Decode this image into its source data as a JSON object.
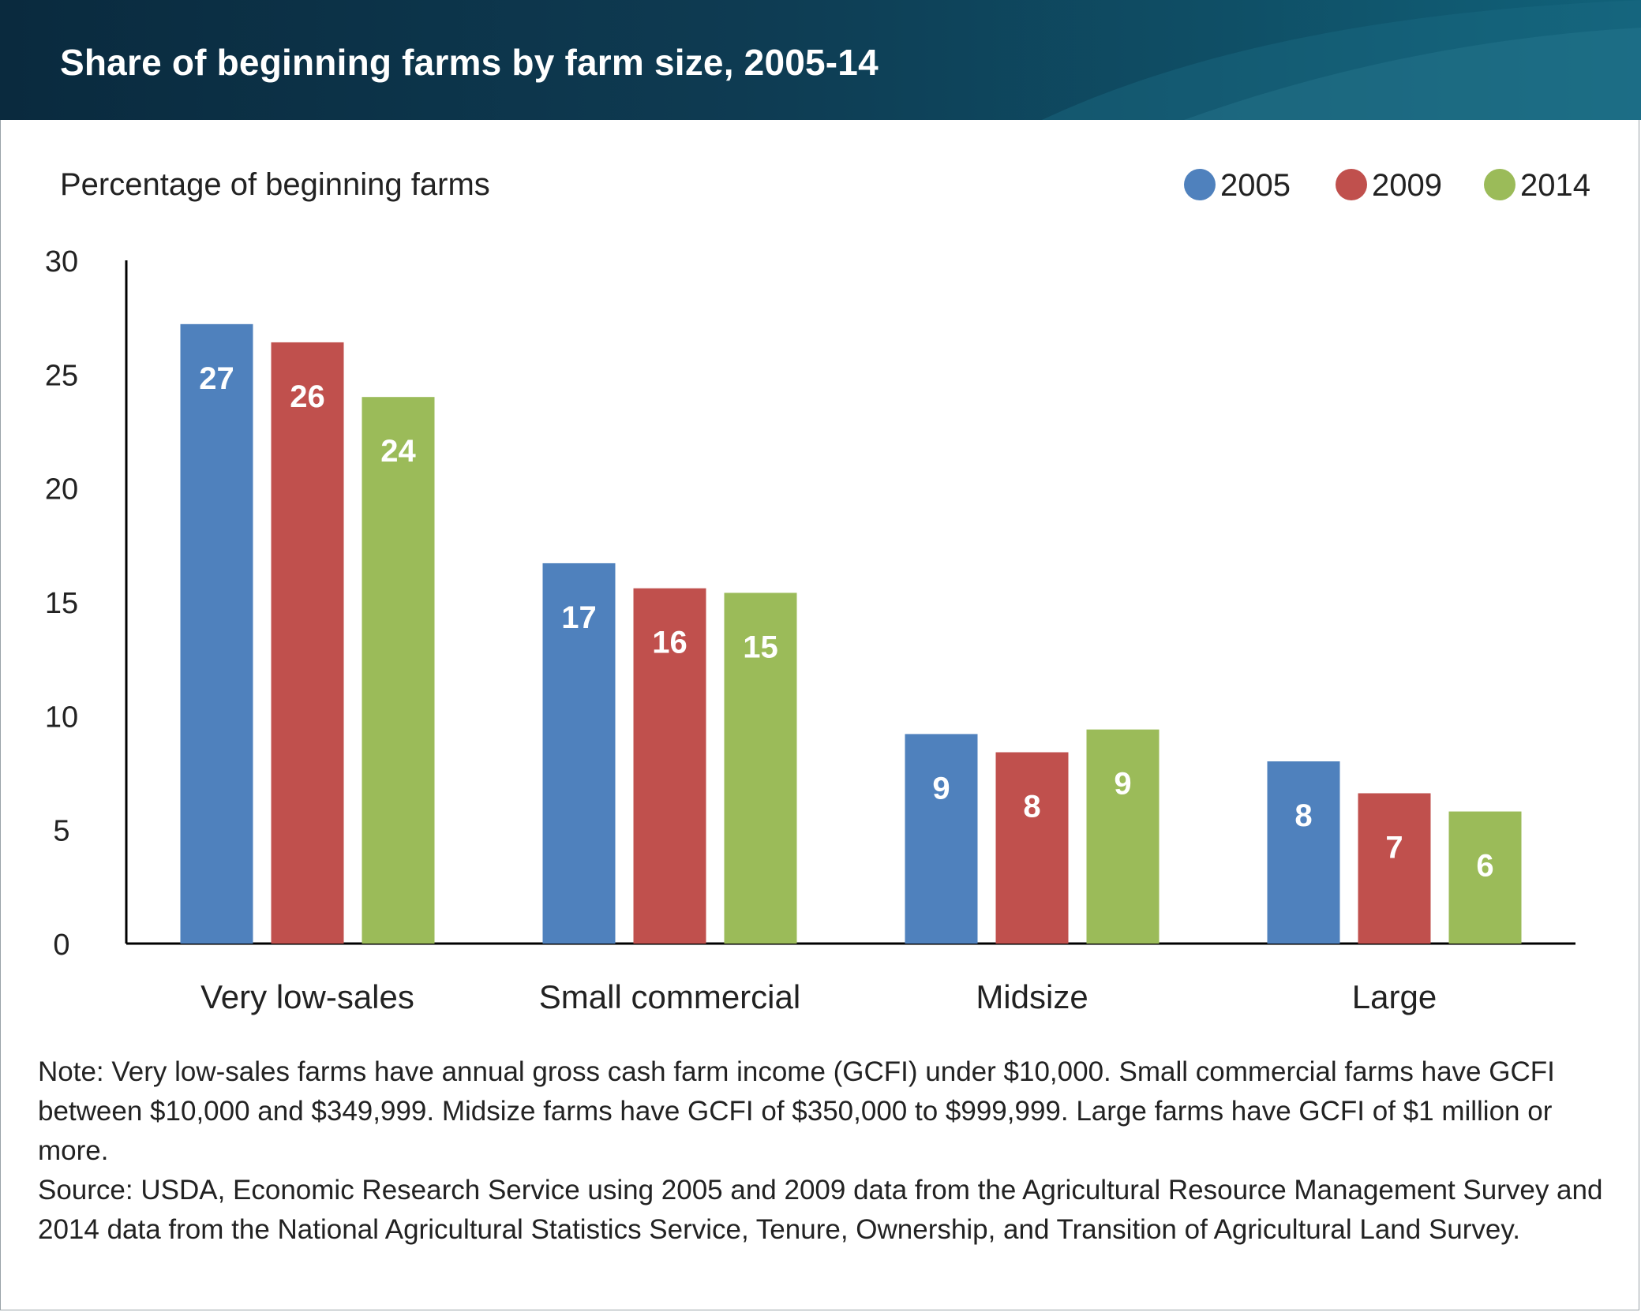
{
  "header": {
    "title": "Share of beginning farms by farm size, 2005-14"
  },
  "chart_data": {
    "type": "bar",
    "ylabel": "Percentage of beginning farms",
    "xlabel": "",
    "ylim": [
      0,
      30
    ],
    "yticks": [
      0,
      5,
      10,
      15,
      20,
      25,
      30
    ],
    "grid": false,
    "legend_position": "top-right",
    "categories": [
      "Very low-sales",
      "Small commercial",
      "Midsize",
      "Large"
    ],
    "series": [
      {
        "name": "2005",
        "color": "#4f81bd",
        "values": [
          27.2,
          16.7,
          9.2,
          8.0
        ],
        "labels": [
          "27",
          "17",
          "9",
          "8"
        ]
      },
      {
        "name": "2009",
        "color": "#c0504d",
        "values": [
          26.4,
          15.6,
          8.4,
          6.6
        ],
        "labels": [
          "26",
          "16",
          "8",
          "7"
        ]
      },
      {
        "name": "2014",
        "color": "#9bbb59",
        "values": [
          24.0,
          15.4,
          9.4,
          5.8
        ],
        "labels": [
          "24",
          "15",
          "9",
          "6"
        ]
      }
    ]
  },
  "footnote": {
    "note": "Note: Very low-sales farms have annual gross cash farm income (GCFI) under $10,000. Small commercial farms have GCFI between $10,000 and $349,999. Midsize farms have GCFI of $350,000 to $999,999. Large farms have GCFI of $1 million or more.",
    "source": "Source: USDA, Economic Research Service using 2005 and 2009 data from the Agricultural Resource Management Survey and 2014 data from the National Agricultural Statistics Service, Tenure, Ownership, and Transition of Agricultural Land Survey."
  }
}
